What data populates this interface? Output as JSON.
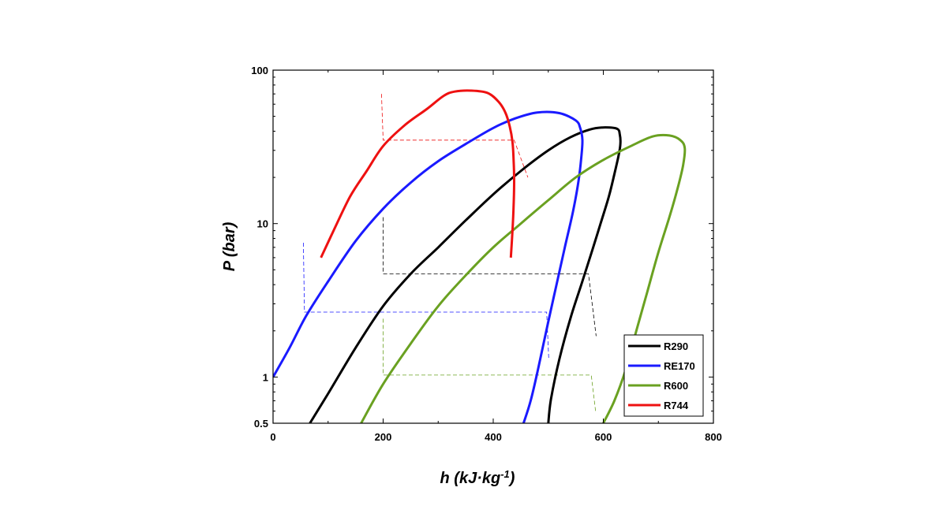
{
  "chart_data": {
    "type": "line",
    "xlabel": "h (kJ·kg",
    "xlabel_sup": "-1",
    "xlabel_close": ")",
    "ylabel": "P (bar)",
    "xlim": [
      0,
      800
    ],
    "ylim": [
      0.5,
      100
    ],
    "yscale": "log",
    "grid": false,
    "legend_position": "bottom-right",
    "x_ticks": [
      0,
      200,
      400,
      600,
      800
    ],
    "x_tick_labels": [
      "0",
      "200",
      "400",
      "600",
      "800"
    ],
    "y_ticks": [
      0.5,
      1,
      10,
      100
    ],
    "y_tick_labels": [
      "0.5",
      "1",
      "10",
      "100"
    ],
    "series": [
      {
        "name": "R290",
        "color": "#000000",
        "points": [
          [
            67,
            0.5
          ],
          [
            100,
            0.78
          ],
          [
            150,
            1.55
          ],
          [
            200,
            2.9
          ],
          [
            250,
            4.7
          ],
          [
            300,
            7.0
          ],
          [
            350,
            10.5
          ],
          [
            400,
            15.5
          ],
          [
            450,
            22
          ],
          [
            500,
            30
          ],
          [
            540,
            36.5
          ],
          [
            575,
            41
          ],
          [
            600,
            42.3
          ],
          [
            625,
            41.5
          ],
          [
            630,
            38
          ],
          [
            631,
            33
          ],
          [
            628,
            28
          ],
          [
            620,
            21
          ],
          [
            610,
            15
          ],
          [
            595,
            10
          ],
          [
            580,
            6.7
          ],
          [
            560,
            4.0
          ],
          [
            540,
            2.4
          ],
          [
            520,
            1.3
          ],
          [
            505,
            0.72
          ],
          [
            500,
            0.5
          ]
        ]
      },
      {
        "name": "RE170",
        "color": "#1a1aff",
        "points": [
          [
            0,
            1.0
          ],
          [
            30,
            1.55
          ],
          [
            60,
            2.5
          ],
          [
            100,
            4.2
          ],
          [
            150,
            7.7
          ],
          [
            200,
            12.5
          ],
          [
            250,
            18.5
          ],
          [
            300,
            25.5
          ],
          [
            350,
            33
          ],
          [
            400,
            42
          ],
          [
            440,
            48.5
          ],
          [
            480,
            53
          ],
          [
            520,
            52.5
          ],
          [
            550,
            47
          ],
          [
            558,
            42
          ],
          [
            562,
            35
          ],
          [
            560,
            27
          ],
          [
            555,
            19
          ],
          [
            545,
            12
          ],
          [
            530,
            7
          ],
          [
            515,
            4
          ],
          [
            500,
            2.3
          ],
          [
            482,
            1.15
          ],
          [
            468,
            0.7
          ],
          [
            455,
            0.5
          ]
        ]
      },
      {
        "name": "R600",
        "color": "#6aa121",
        "points": [
          [
            160,
            0.5
          ],
          [
            200,
            0.9
          ],
          [
            250,
            1.65
          ],
          [
            300,
            2.9
          ],
          [
            350,
            4.6
          ],
          [
            400,
            7.0
          ],
          [
            450,
            10.0
          ],
          [
            500,
            14.2
          ],
          [
            550,
            20
          ],
          [
            600,
            26
          ],
          [
            650,
            32
          ],
          [
            690,
            37
          ],
          [
            720,
            37.5
          ],
          [
            740,
            35
          ],
          [
            748,
            31
          ],
          [
            745,
            24
          ],
          [
            735,
            17
          ],
          [
            720,
            11
          ],
          [
            700,
            6.5
          ],
          [
            680,
            3.6
          ],
          [
            660,
            2.0
          ],
          [
            640,
            1.1
          ],
          [
            620,
            0.7
          ],
          [
            600,
            0.5
          ]
        ]
      },
      {
        "name": "R744",
        "color": "#ee1111",
        "points": [
          [
            87,
            6.0
          ],
          [
            110,
            9.0
          ],
          [
            140,
            15
          ],
          [
            170,
            22
          ],
          [
            200,
            32
          ],
          [
            240,
            44
          ],
          [
            280,
            56
          ],
          [
            310,
            68
          ],
          [
            330,
            72.5
          ],
          [
            360,
            73.5
          ],
          [
            390,
            71
          ],
          [
            410,
            62
          ],
          [
            422,
            53
          ],
          [
            430,
            43
          ],
          [
            435,
            34
          ],
          [
            437,
            26
          ],
          [
            438,
            19
          ],
          [
            437,
            13
          ],
          [
            435,
            9
          ],
          [
            432,
            6.0
          ]
        ]
      }
    ],
    "cycle_lines": [
      {
        "series": "R744",
        "color": "#ee1111",
        "width": 0.8,
        "points": [
          [
            197,
            70
          ],
          [
            200,
            35
          ],
          [
            438,
            35
          ],
          [
            463,
            20
          ]
        ]
      },
      {
        "series": "R290",
        "color": "#000000",
        "width": 0.8,
        "points": [
          [
            200,
            11
          ],
          [
            200,
            4.7
          ],
          [
            573,
            4.7
          ],
          [
            587,
            1.85
          ]
        ]
      },
      {
        "series": "RE170",
        "color": "#1a1aff",
        "width": 0.8,
        "points": [
          [
            55,
            7.5
          ],
          [
            57,
            2.65
          ],
          [
            497,
            2.65
          ],
          [
            501,
            1.3
          ]
        ]
      },
      {
        "series": "R600",
        "color": "#6aa121",
        "width": 0.8,
        "points": [
          [
            200,
            2.4
          ],
          [
            200,
            1.03
          ],
          [
            578,
            1.03
          ],
          [
            586,
            0.6
          ]
        ]
      }
    ]
  }
}
